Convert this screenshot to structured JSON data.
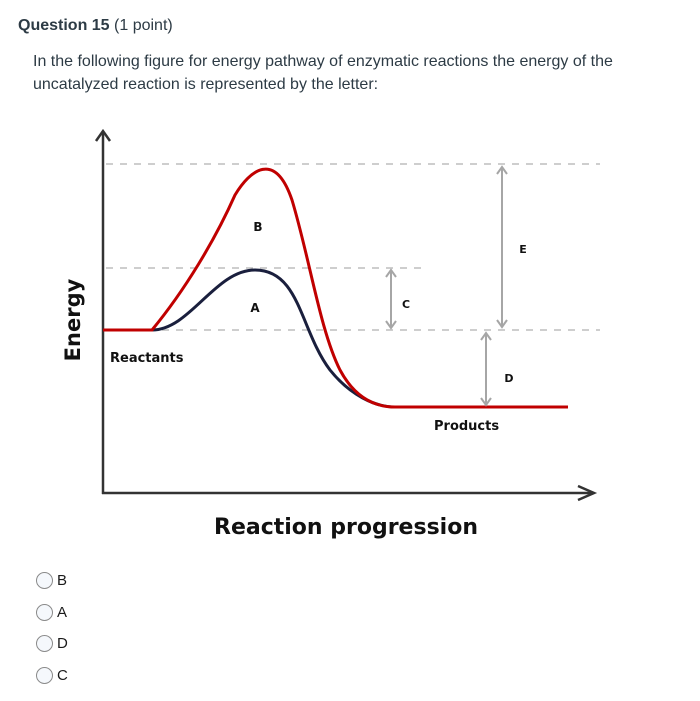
{
  "question": {
    "number_label": "Question 15",
    "points": "(1 point)",
    "text": "In the following figure for energy pathway of enzymatic reactions the energy of the uncatalyzed reaction is represented by the letter:"
  },
  "figure": {
    "y_axis_label": "Energy",
    "x_axis_label": "Reaction progression",
    "reactants_label": "Reactants",
    "products_label": "Products",
    "curve_labels": {
      "B": "B",
      "A": "A"
    },
    "arrow_labels": {
      "C": "C",
      "E": "E",
      "D": "D"
    },
    "colors": {
      "uncatalyzed": "#c00000",
      "catalyzed": "#1a1f3d",
      "dashed": "#bdbdbd",
      "arrows": "#a6a6a6"
    }
  },
  "options": [
    {
      "label": "B",
      "selected": false
    },
    {
      "label": "A",
      "selected": false
    },
    {
      "label": "D",
      "selected": false
    },
    {
      "label": "C",
      "selected": false
    }
  ]
}
